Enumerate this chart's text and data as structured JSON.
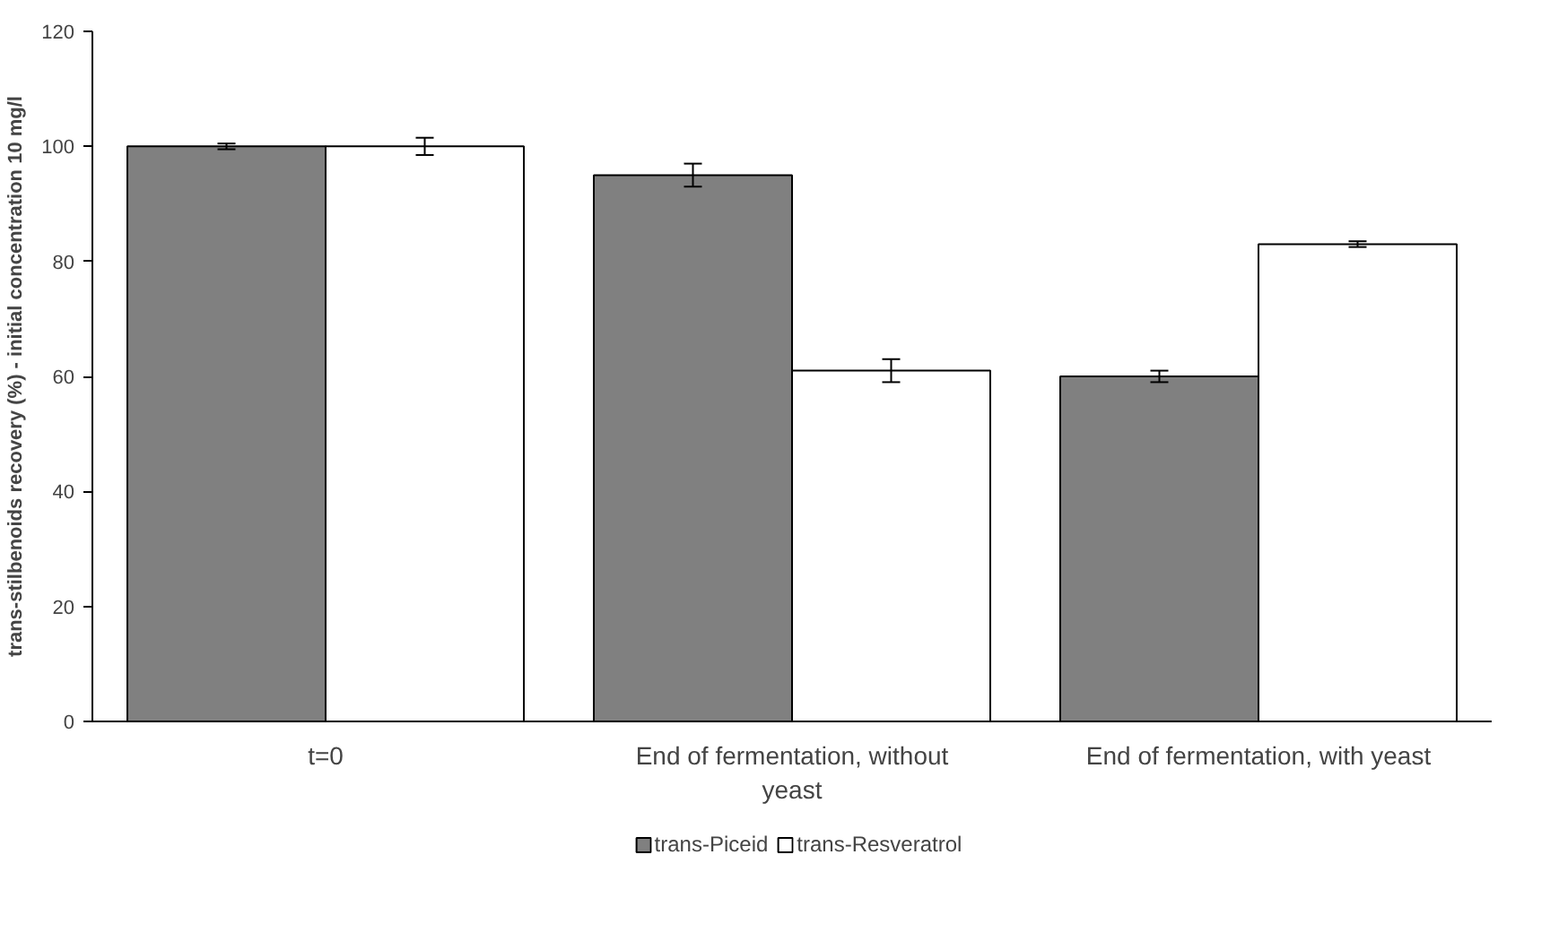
{
  "chart_data": {
    "type": "bar",
    "ylabel": "trans-stilbenoids recovery (%) - initial concentration 10 mg/l",
    "categories": [
      "t=0",
      "End of fermentation, without yeast",
      "End of fermentation, with yeast"
    ],
    "series": [
      {
        "name": "trans-Piceid",
        "color": "#808080",
        "values": [
          100,
          95,
          60
        ],
        "errors": [
          0.5,
          2,
          1
        ]
      },
      {
        "name": "trans-Resveratrol",
        "color": "#ffffff",
        "values": [
          100,
          61,
          83
        ],
        "errors": [
          1.5,
          2,
          0.5
        ]
      }
    ],
    "ylim": [
      0,
      120
    ],
    "yticks": [
      0,
      20,
      40,
      60,
      80,
      100,
      120
    ],
    "grid": false,
    "legend": "bottom"
  }
}
